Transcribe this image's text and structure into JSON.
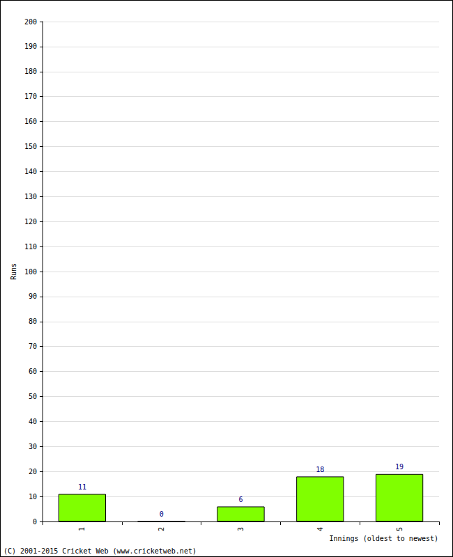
{
  "chart_data": {
    "type": "bar",
    "categories": [
      "1",
      "2",
      "3",
      "4",
      "5"
    ],
    "values": [
      11,
      0,
      6,
      18,
      19
    ],
    "color": "#80ff00",
    "x_label": "Innings (oldest to newest)",
    "y_label": "Runs",
    "annotations": [
      "(C) 2001-2015 Cricket Web (www.cricketweb.net)"
    ],
    "ylim": [
      0,
      200
    ],
    "yticks": [
      0,
      10,
      20,
      30,
      40,
      50,
      60,
      70,
      80,
      90,
      100,
      110,
      120,
      130,
      140,
      150,
      160,
      170,
      180,
      190,
      200
    ],
    "grid": true,
    "data_labels": true
  }
}
